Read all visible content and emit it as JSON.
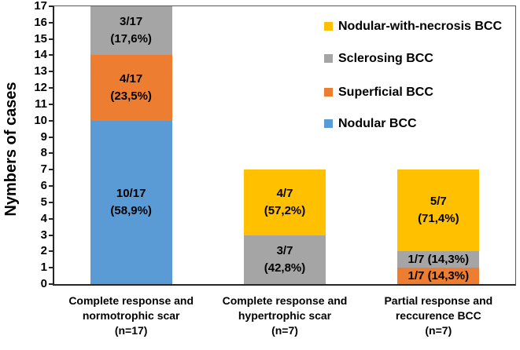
{
  "chart_data": {
    "type": "bar",
    "stacked": true,
    "title": "",
    "xlabel": "",
    "ylabel": "Nymbers of cases",
    "ylim": [
      0,
      17
    ],
    "ytick_step": 1,
    "grid": false,
    "legend_position": "top-right",
    "legend": [
      {
        "label": "Nodular-with-necrosis BCC",
        "color": "#FFC000"
      },
      {
        "label": "Sclerosing BCC",
        "color": "#A5A5A5"
      },
      {
        "label": "Superficial BCC",
        "color": "#ED7D31"
      },
      {
        "label": "Nodular BCC",
        "color": "#5B9BD5"
      }
    ],
    "series_colors": {
      "Nodular BCC": "#5B9BD5",
      "Superficial BCC": "#ED7D31",
      "Sclerosing BCC": "#A5A5A5",
      "Nodular-with-necrosis BCC": "#FFC000"
    },
    "categories": [
      [
        "Complete response and",
        "normotrophic scar",
        "(n=17)"
      ],
      [
        "Complete response and",
        "hypertrophic scar",
        "(n=7)"
      ],
      [
        "Partial response and",
        "reccurence BCC",
        "(n=7)"
      ]
    ],
    "bars": [
      {
        "total": 17,
        "segments": [
          {
            "series": "Nodular BCC",
            "value": 10,
            "label_lines": [
              "10/17",
              "(58,9%)"
            ]
          },
          {
            "series": "Superficial BCC",
            "value": 4,
            "label_lines": [
              "4/17",
              "(23,5%)"
            ]
          },
          {
            "series": "Sclerosing BCC",
            "value": 3,
            "label_lines": [
              "3/17",
              "(17,6%)"
            ]
          }
        ]
      },
      {
        "total": 7,
        "segments": [
          {
            "series": "Sclerosing BCC",
            "value": 3,
            "label_lines": [
              "3/7",
              "(42,8%)"
            ]
          },
          {
            "series": "Nodular-with-necrosis BCC",
            "value": 4,
            "label_lines": [
              "4/7",
              "(57,2%)"
            ]
          }
        ]
      },
      {
        "total": 7,
        "segments": [
          {
            "series": "Superficial BCC",
            "value": 1,
            "label_lines": [
              "1/7 (14,3%)"
            ]
          },
          {
            "series": "Sclerosing BCC",
            "value": 1,
            "label_lines": [
              "1/7 (14,3%)"
            ]
          },
          {
            "series": "Nodular-with-necrosis BCC",
            "value": 5,
            "label_lines": [
              "5/7",
              "(71,4%)"
            ]
          }
        ]
      }
    ]
  }
}
